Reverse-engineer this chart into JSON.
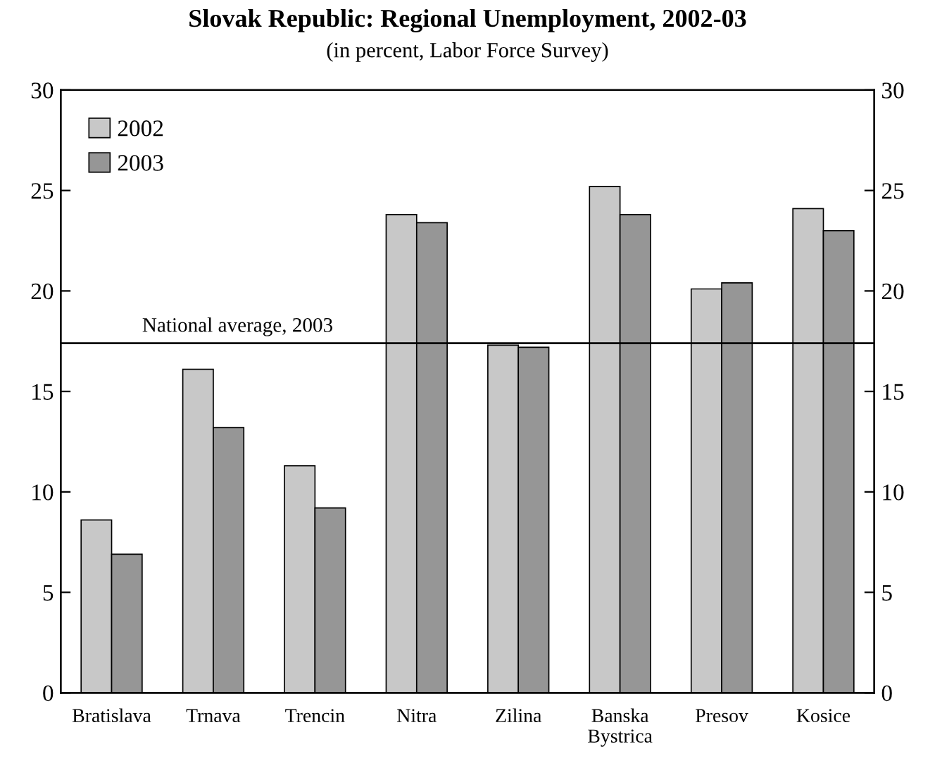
{
  "chart_data": {
    "type": "bar",
    "title": "Slovak Republic: Regional Unemployment, 2002-03",
    "subtitle": "(in percent, Labor Force Survey)",
    "categories": [
      "Bratislava",
      "Trnava",
      "Trencin",
      "Nitra",
      "Zilina",
      "Banska\nBystrica",
      "Presov",
      "Kosice"
    ],
    "series": [
      {
        "name": "2002",
        "color": "#c8c8c8",
        "values": [
          8.6,
          16.1,
          11.3,
          23.8,
          17.3,
          25.2,
          20.1,
          24.1
        ]
      },
      {
        "name": "2003",
        "color": "#969696",
        "values": [
          6.9,
          13.2,
          9.2,
          23.4,
          17.2,
          23.8,
          20.4,
          23.0
        ]
      }
    ],
    "ylim": [
      0,
      30
    ],
    "yticks": [
      0,
      5,
      10,
      15,
      20,
      25,
      30
    ],
    "y2lim": [
      0,
      30
    ],
    "y2ticks": [
      0,
      5,
      10,
      15,
      20,
      25,
      30
    ],
    "ref_lines": [
      {
        "axis": "y",
        "value": 17.4,
        "label": "National average, 2003",
        "color": "#000000"
      }
    ],
    "legend": "top left",
    "grid": false
  }
}
